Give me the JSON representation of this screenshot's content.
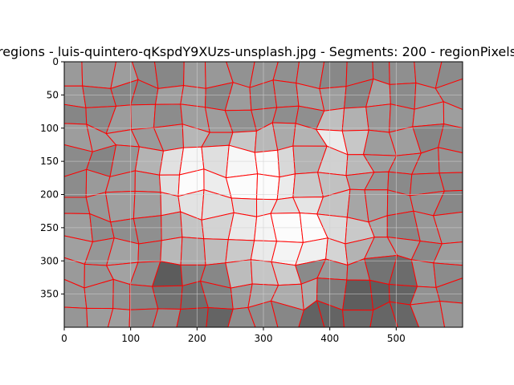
{
  "chart_data": {
    "type": "heatmap",
    "title": "regions - luis-quintero-qKspdY9XUzs-unsplash.jpg - Segments: 200 - regionPixels",
    "xlabel": "",
    "ylabel": "",
    "xlim": [
      0,
      600
    ],
    "ylim": [
      400,
      0
    ],
    "x_ticks": [
      0,
      100,
      200,
      300,
      400,
      500
    ],
    "y_ticks": [
      0,
      50,
      100,
      150,
      200,
      250,
      300,
      350
    ],
    "grid": true,
    "segments": 200,
    "boundary_color": "#ff0000",
    "colormap": "grayscale",
    "description_visible": "segmented image regions with red boundaries"
  },
  "colors": {
    "boundary": "#ff0000",
    "grid": "#d9d9d9",
    "axis": "#000000",
    "dark_region": "#5e5e5e",
    "mid_region": "#9a9a9a",
    "light_region": "#e6e6e6"
  }
}
